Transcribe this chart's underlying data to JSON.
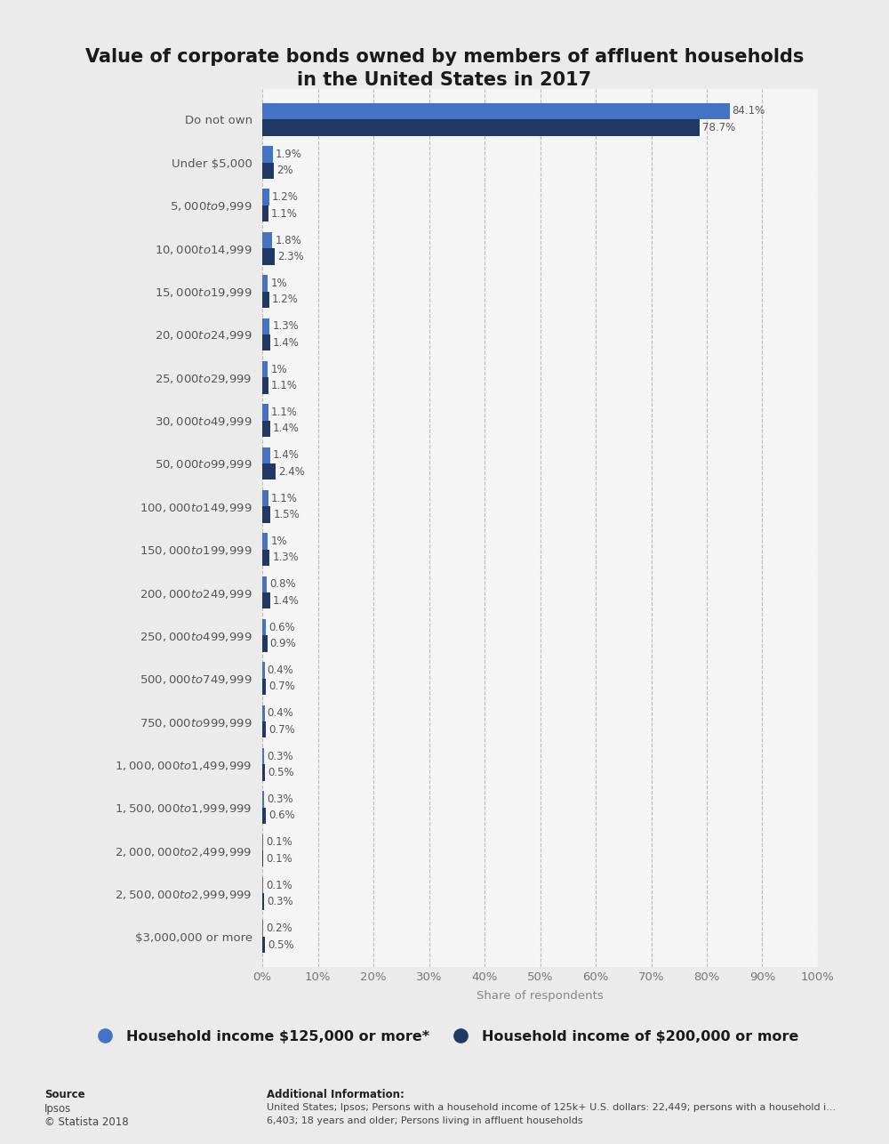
{
  "title": "Value of corporate bonds owned by members of affluent households\nin the United States in 2017",
  "categories": [
    "Do not own",
    "Under $5,000",
    "$5,000 to $9,999",
    "$10,000 to $14,999",
    "$15,000 to $19,999",
    "$20,000 to $24,999",
    "$25,000 to $29,999",
    "$30,000 to $49,999",
    "$50,000 to $99,999",
    "$100,000 to $149,999",
    "$150,000 to $199,999",
    "$200,000 to $249,999",
    "$250,000 to $499,999",
    "$500,000 to $749,999",
    "$750,000 to $999,999",
    "$1,000,000 to $1,499,999",
    "$1,500,000 to $1,999,999",
    "$2,000,000 to $2,499,999",
    "$2,500,000 to $2,999,999",
    "$3,000,000 or more"
  ],
  "series1_label": "Household income $125,000 or more*",
  "series2_label": "Household income of $200,000 or more",
  "series1_color": "#4472C4",
  "series2_color": "#1F3864",
  "series1_values": [
    84.1,
    1.9,
    1.2,
    1.8,
    1.0,
    1.3,
    1.0,
    1.1,
    1.4,
    1.1,
    1.0,
    0.8,
    0.6,
    0.4,
    0.4,
    0.3,
    0.3,
    0.1,
    0.1,
    0.2
  ],
  "series2_values": [
    78.7,
    2.0,
    1.1,
    2.3,
    1.2,
    1.4,
    1.1,
    1.4,
    2.4,
    1.5,
    1.3,
    1.4,
    0.9,
    0.7,
    0.7,
    0.5,
    0.6,
    0.1,
    0.3,
    0.5
  ],
  "series1_labels": [
    "84.1%",
    "1.9%",
    "1.2%",
    "1.8%",
    "1%",
    "1.3%",
    "1%",
    "1.1%",
    "1.4%",
    "1.1%",
    "1%",
    "0.8%",
    "0.6%",
    "0.4%",
    "0.4%",
    "0.3%",
    "0.3%",
    "0.1%",
    "0.1%",
    "0.2%"
  ],
  "series2_labels": [
    "78.7%",
    "2%",
    "1.1%",
    "2.3%",
    "1.2%",
    "1.4%",
    "1.1%",
    "1.4%",
    "2.4%",
    "1.5%",
    "1.3%",
    "1.4%",
    "0.9%",
    "0.7%",
    "0.7%",
    "0.5%",
    "0.6%",
    "0.1%",
    "0.3%",
    "0.5%"
  ],
  "xlabel": "Share of respondents",
  "xlim": [
    0,
    100
  ],
  "xticks": [
    0,
    10,
    20,
    30,
    40,
    50,
    60,
    70,
    80,
    90,
    100
  ],
  "xtick_labels": [
    "0%",
    "10%",
    "20%",
    "30%",
    "40%",
    "50%",
    "60%",
    "70%",
    "80%",
    "90%",
    "100%"
  ],
  "bg_color": "#EBEBEB",
  "plot_bg_color": "#F5F5F5",
  "source_line1": "Source",
  "source_line2": "Ipsos",
  "source_line3": "© Statista 2018",
  "addinfo_line1": "Additional Information:",
  "addinfo_line2": "United States; Ipsos; Persons with a household income of 125k+ U.S. dollars: 22,449; persons with a household i...",
  "addinfo_line3": "6,403; 18 years and older; Persons living in affluent households"
}
